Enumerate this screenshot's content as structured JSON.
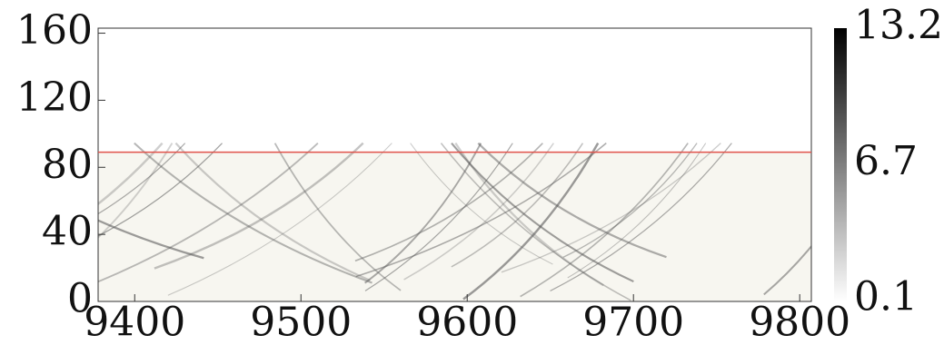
{
  "chart_data": {
    "type": "heatmap",
    "xlim": [
      9378,
      9807
    ],
    "xticks": [
      9400,
      9500,
      9600,
      9700,
      9800
    ],
    "ylim": [
      0,
      163
    ],
    "yticks": [
      0,
      40,
      80,
      120,
      160
    ],
    "field_color": "#f7f6f0",
    "line": {
      "y": 89,
      "color": "#e0524a"
    },
    "colorbar": {
      "clim": [
        0.1,
        13.2
      ],
      "ticks": [
        0.1,
        6.7,
        13.2
      ],
      "colors": [
        "#ffffff",
        "#000000"
      ]
    }
  }
}
